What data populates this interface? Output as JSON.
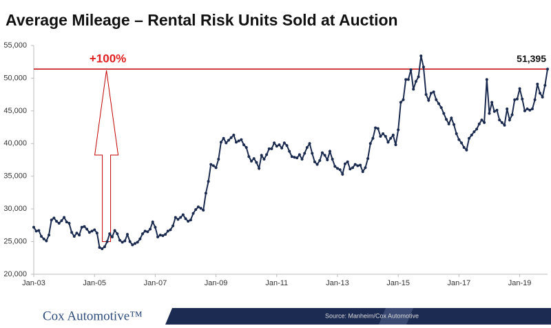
{
  "chart_data": {
    "type": "line",
    "title": "Average Mileage – Rental Risk Units Sold at Auction",
    "x": [
      "2003-01",
      "2003-02",
      "2003-03",
      "2003-04",
      "2003-05",
      "2003-06",
      "2003-07",
      "2003-08",
      "2003-09",
      "2003-10",
      "2003-11",
      "2003-12",
      "2004-01",
      "2004-02",
      "2004-03",
      "2004-04",
      "2004-05",
      "2004-06",
      "2004-07",
      "2004-08",
      "2004-09",
      "2004-10",
      "2004-11",
      "2004-12",
      "2005-01",
      "2005-02",
      "2005-03",
      "2005-04",
      "2005-05",
      "2005-06",
      "2005-07",
      "2005-08",
      "2005-09",
      "2005-10",
      "2005-11",
      "2005-12",
      "2006-01",
      "2006-02",
      "2006-03",
      "2006-04",
      "2006-05",
      "2006-06",
      "2006-07",
      "2006-08",
      "2006-09",
      "2006-10",
      "2006-11",
      "2006-12",
      "2007-01",
      "2007-02",
      "2007-03",
      "2007-04",
      "2007-05",
      "2007-06",
      "2007-07",
      "2007-08",
      "2007-09",
      "2007-10",
      "2007-11",
      "2007-12",
      "2008-01",
      "2008-02",
      "2008-03",
      "2008-04",
      "2008-05",
      "2008-06",
      "2008-07",
      "2008-08",
      "2008-09",
      "2008-10",
      "2008-11",
      "2008-12",
      "2009-01",
      "2009-02",
      "2009-03",
      "2009-04",
      "2009-05",
      "2009-06",
      "2009-07",
      "2009-08",
      "2009-09",
      "2009-10",
      "2009-11",
      "2009-12",
      "2010-01",
      "2010-02",
      "2010-03",
      "2010-04",
      "2010-05",
      "2010-06",
      "2010-07",
      "2010-08",
      "2010-09",
      "2010-10",
      "2010-11",
      "2010-12",
      "2011-01",
      "2011-02",
      "2011-03",
      "2011-04",
      "2011-05",
      "2011-06",
      "2011-07",
      "2011-08",
      "2011-09",
      "2011-10",
      "2011-11",
      "2011-12",
      "2012-01",
      "2012-02",
      "2012-03",
      "2012-04",
      "2012-05",
      "2012-06",
      "2012-07",
      "2012-08",
      "2012-09",
      "2012-10",
      "2012-11",
      "2012-12",
      "2013-01",
      "2013-02",
      "2013-03",
      "2013-04",
      "2013-05",
      "2013-06",
      "2013-07",
      "2013-08",
      "2013-09",
      "2013-10",
      "2013-11",
      "2013-12",
      "2014-01",
      "2014-02",
      "2014-03",
      "2014-04",
      "2014-05",
      "2014-06",
      "2014-07",
      "2014-08",
      "2014-09",
      "2014-10",
      "2014-11",
      "2014-12",
      "2015-01",
      "2015-02",
      "2015-03",
      "2015-04",
      "2015-05",
      "2015-06",
      "2015-07",
      "2015-08",
      "2015-09",
      "2015-10",
      "2015-11",
      "2015-12",
      "2016-01",
      "2016-02",
      "2016-03",
      "2016-04",
      "2016-05",
      "2016-06",
      "2016-07",
      "2016-08",
      "2016-09",
      "2016-10",
      "2016-11",
      "2016-12",
      "2017-01",
      "2017-02",
      "2017-03",
      "2017-04",
      "2017-05",
      "2017-06",
      "2017-07",
      "2017-08",
      "2017-09",
      "2017-10",
      "2017-11",
      "2017-12",
      "2018-01",
      "2018-02",
      "2018-03",
      "2018-04",
      "2018-05",
      "2018-06",
      "2018-07",
      "2018-08",
      "2018-09",
      "2018-10",
      "2018-11",
      "2018-12",
      "2019-01",
      "2019-02",
      "2019-03",
      "2019-04",
      "2019-05",
      "2019-06",
      "2019-07",
      "2019-08",
      "2019-09",
      "2019-10",
      "2019-11",
      "2019-12"
    ],
    "series": [
      {
        "color": "#1a2a4f",
        "values": [
          27200,
          26600,
          26700,
          25800,
          25400,
          25100,
          26000,
          28300,
          28600,
          28100,
          27800,
          28200,
          28700,
          28000,
          27800,
          26400,
          25800,
          26300,
          26000,
          27200,
          27300,
          26900,
          26400,
          26600,
          26800,
          26300,
          24100,
          23900,
          24200,
          25000,
          26200,
          25700,
          26700,
          26200,
          25200,
          24900,
          25100,
          26100,
          25000,
          24500,
          24700,
          24900,
          25400,
          26200,
          26600,
          26500,
          26900,
          28000,
          27200,
          25700,
          26000,
          25900,
          26100,
          26600,
          26800,
          27400,
          28700,
          28400,
          28700,
          29100,
          28500,
          28100,
          28300,
          29300,
          29900,
          30300,
          30100,
          29800,
          32400,
          34200,
          36800,
          36600,
          36300,
          37600,
          40200,
          40800,
          40100,
          40500,
          40900,
          41300,
          40200,
          40400,
          40600,
          39800,
          39400,
          38000,
          37300,
          37700,
          37100,
          36200,
          38200,
          37600,
          38300,
          39200,
          39200,
          40100,
          39600,
          39800,
          39300,
          40100,
          39700,
          38800,
          38000,
          37900,
          37800,
          38300,
          37600,
          38500,
          39400,
          40000,
          38500,
          37200,
          36800,
          37400,
          38600,
          38200,
          37500,
          38800,
          37600,
          36500,
          36200,
          36000,
          35300,
          36900,
          37200,
          36100,
          36300,
          36800,
          36600,
          36700,
          35700,
          36300,
          37700,
          40000,
          40800,
          42400,
          42300,
          41100,
          41500,
          41100,
          40200,
          40800,
          41300,
          39800,
          42100,
          46300,
          46700,
          49800,
          49800,
          51300,
          48300,
          49500,
          50200,
          53400,
          51700,
          47500,
          46600,
          47700,
          47900,
          46700,
          46100,
          45500,
          44600,
          43700,
          43000,
          43900,
          42900,
          41500,
          40600,
          40100,
          39400,
          39000,
          40800,
          41300,
          41800,
          42200,
          43000,
          43600,
          43200,
          49800,
          44600,
          46300,
          44900,
          45100,
          43600,
          43200,
          42800,
          45300,
          43600,
          44400,
          46700,
          46800,
          48400,
          46800,
          45000,
          45300,
          45100,
          45300,
          46700,
          49100,
          47700,
          47100,
          48900,
          51395
        ]
      }
    ],
    "xticks": [
      {
        "value": "2003-01",
        "label": "Jan-03"
      },
      {
        "value": "2005-01",
        "label": "Jan-05"
      },
      {
        "value": "2007-01",
        "label": "Jan-07"
      },
      {
        "value": "2009-01",
        "label": "Jan-09"
      },
      {
        "value": "2011-01",
        "label": "Jan-11"
      },
      {
        "value": "2013-01",
        "label": "Jan-13"
      },
      {
        "value": "2015-01",
        "label": "Jan-15"
      },
      {
        "value": "2017-01",
        "label": "Jan-17"
      },
      {
        "value": "2019-01",
        "label": "Jan-19"
      }
    ],
    "ylim": [
      20000,
      55000
    ],
    "yticks": [
      {
        "value": 20000,
        "label": "20,000"
      },
      {
        "value": 25000,
        "label": "25,000"
      },
      {
        "value": 30000,
        "label": "30,000"
      },
      {
        "value": 35000,
        "label": "35,000"
      },
      {
        "value": 40000,
        "label": "40,000"
      },
      {
        "value": 45000,
        "label": "45,000"
      },
      {
        "value": 50000,
        "label": "50,000"
      },
      {
        "value": 55000,
        "label": "55,000"
      }
    ],
    "reference_line": {
      "value": 51395,
      "label": "51,395",
      "color": "#c00000"
    },
    "annotation": "+100%"
  },
  "footer": {
    "logo": "Cox Automotive™",
    "source": "Source: Manheim/Cox Automotive"
  }
}
